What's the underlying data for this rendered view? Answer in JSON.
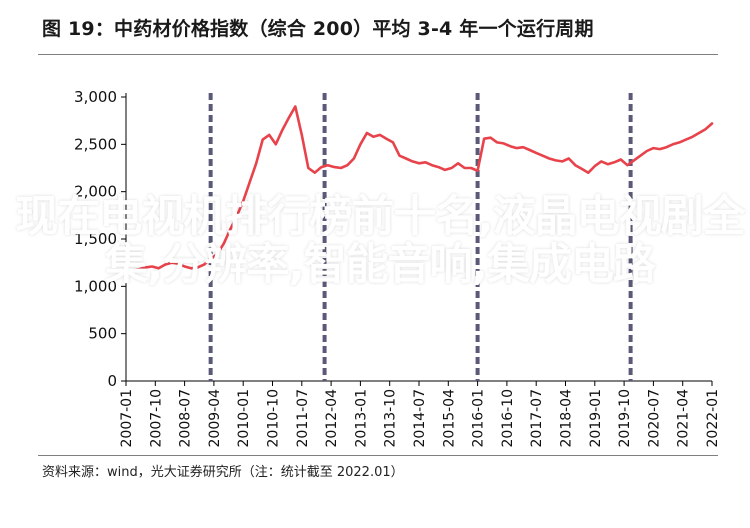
{
  "header": {
    "title": "图 19：中药材价格指数（综合 200）平均 3-4 年一个运行周期"
  },
  "footer": {
    "source": "资料来源：wind，光大证券研究所（注：统计截至 2022.01）"
  },
  "overlay": {
    "text": "现在电视机排行榜前十名,液晶电视剧全集,分辨率,智能音响,集成电路"
  },
  "chart_data": {
    "type": "line",
    "title": "中药材价格指数（综合 200）平均 3-4 年一个运行周期",
    "xlabel": "",
    "ylabel": "",
    "ylim": [
      0,
      3000
    ],
    "yticks": [
      0,
      500,
      1000,
      1500,
      2000,
      2500,
      3000
    ],
    "ytick_labels": [
      "0",
      "500",
      "1,000",
      "1,500",
      "2,000",
      "2,500",
      "3,000"
    ],
    "xlim": [
      "2007-01",
      "2022-01"
    ],
    "xtick_labels": [
      "2007-01",
      "2007-10",
      "2008-07",
      "2009-04",
      "2010-01",
      "2010-10",
      "2011-07",
      "2012-04",
      "2013-01",
      "2013-10",
      "2014-07",
      "2015-04",
      "2016-01",
      "2016-10",
      "2017-07",
      "2018-04",
      "2019-01",
      "2019-10",
      "2020-07",
      "2021-04",
      "2022-01"
    ],
    "grid": false,
    "legend": "none",
    "line_color": "#e8424b",
    "cycle_marker_color": "#5a5a78",
    "cycle_markers": [
      "2009-03",
      "2012-02",
      "2016-01",
      "2019-12"
    ],
    "series": [
      {
        "x": [
          "2007-01",
          "2007-03",
          "2007-05",
          "2007-07",
          "2007-09",
          "2007-11",
          "2008-01",
          "2008-03",
          "2008-05",
          "2008-07",
          "2008-09",
          "2008-11",
          "2009-01",
          "2009-03",
          "2009-05",
          "2009-07",
          "2009-09",
          "2009-11",
          "2010-01",
          "2010-03",
          "2010-05",
          "2010-07",
          "2010-09",
          "2010-11",
          "2011-01",
          "2011-03",
          "2011-05",
          "2011-07",
          "2011-09",
          "2011-11",
          "2012-01",
          "2012-03",
          "2012-05",
          "2012-07",
          "2012-09",
          "2012-11",
          "2013-01",
          "2013-03",
          "2013-05",
          "2013-07",
          "2013-09",
          "2013-11",
          "2014-01",
          "2014-03",
          "2014-05",
          "2014-07",
          "2014-09",
          "2014-11",
          "2015-01",
          "2015-03",
          "2015-05",
          "2015-07",
          "2015-09",
          "2015-11",
          "2016-01",
          "2016-03",
          "2016-05",
          "2016-07",
          "2016-09",
          "2016-11",
          "2017-01",
          "2017-03",
          "2017-05",
          "2017-07",
          "2017-09",
          "2017-11",
          "2018-01",
          "2018-03",
          "2018-05",
          "2018-07",
          "2018-09",
          "2018-11",
          "2019-01",
          "2019-03",
          "2019-05",
          "2019-07",
          "2019-09",
          "2019-11",
          "2020-01",
          "2020-03",
          "2020-05",
          "2020-07",
          "2020-09",
          "2020-11",
          "2021-01",
          "2021-03",
          "2021-05",
          "2021-07",
          "2021-09",
          "2021-11",
          "2022-01"
        ],
        "values": [
          1150,
          1170,
          1180,
          1200,
          1210,
          1190,
          1230,
          1250,
          1240,
          1210,
          1190,
          1200,
          1230,
          1290,
          1340,
          1450,
          1600,
          1740,
          1900,
          2100,
          2300,
          2550,
          2600,
          2500,
          2650,
          2780,
          2900,
          2600,
          2250,
          2200,
          2260,
          2280,
          2260,
          2250,
          2280,
          2350,
          2500,
          2620,
          2580,
          2600,
          2560,
          2520,
          2380,
          2350,
          2320,
          2300,
          2310,
          2280,
          2260,
          2230,
          2250,
          2300,
          2250,
          2250,
          2220,
          2560,
          2570,
          2520,
          2510,
          2480,
          2460,
          2470,
          2440,
          2410,
          2380,
          2350,
          2330,
          2320,
          2350,
          2280,
          2240,
          2200,
          2270,
          2320,
          2290,
          2310,
          2340,
          2280,
          2330,
          2380,
          2430,
          2460,
          2450,
          2470,
          2500,
          2520,
          2550,
          2580,
          2620,
          2660,
          2720
        ]
      }
    ]
  }
}
